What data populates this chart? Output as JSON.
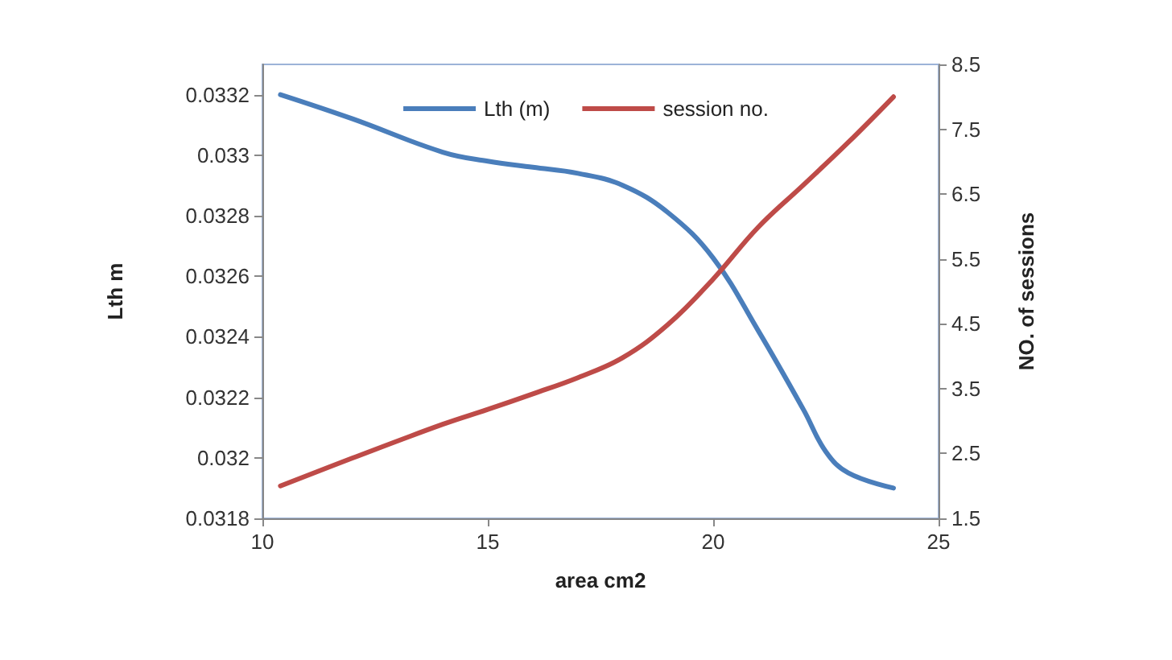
{
  "chart_data": {
    "type": "line",
    "xlabel": "area cm2",
    "ylabel": "Lth m",
    "y2label": "NO. of sessions",
    "xlim": [
      10,
      25
    ],
    "xticks": [
      10,
      15,
      20,
      25
    ],
    "ylim": [
      0.0318,
      0.0333
    ],
    "yticks": [
      0.0318,
      0.032,
      0.0322,
      0.0324,
      0.0326,
      0.0328,
      0.033,
      0.0332
    ],
    "y2lim": [
      1.5,
      8.5
    ],
    "y2ticks": [
      1.5,
      2.5,
      3.5,
      4.5,
      5.5,
      6.5,
      7.5,
      8.5
    ],
    "grid": false,
    "legend": "top",
    "marker": "none",
    "line_style": "solid",
    "series": [
      {
        "name": "Lth (m)",
        "color": "#4a7ebb",
        "x": [
          10.4,
          12,
          14,
          15,
          16,
          17,
          18,
          19,
          20,
          21,
          22,
          22.5,
          23,
          24
        ],
        "values": [
          0.0332,
          0.03312,
          0.03301,
          0.03298,
          0.03296,
          0.03294,
          0.0329,
          0.03281,
          0.03266,
          0.03242,
          0.03216,
          0.03202,
          0.03195,
          0.0319
        ]
      },
      {
        "name": "session no.",
        "color": "#be4b48",
        "axis": "y2",
        "x": [
          10.4,
          12,
          14,
          15,
          16,
          17,
          18,
          19,
          20,
          21,
          22,
          23,
          24
        ],
        "values": [
          2,
          2.43,
          2.95,
          3.18,
          3.42,
          3.67,
          3.98,
          4.49,
          5.19,
          5.99,
          6.64,
          7.3,
          8
        ]
      }
    ]
  }
}
